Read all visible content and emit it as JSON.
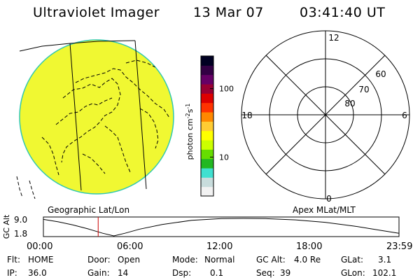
{
  "header": {
    "title": "Ultraviolet Imager",
    "date": "13 Mar 07",
    "time": "03:41:40 UT"
  },
  "colorbar": {
    "label": "photon cm-2s-1",
    "label_base": "photon cm",
    "label_exp1": "-2",
    "label_mid": "s",
    "label_exp2": "-1",
    "ticks": [
      {
        "value": 100,
        "label": "100"
      },
      {
        "value": 10,
        "label": "10"
      }
    ],
    "range": [
      2.7,
      300
    ],
    "scale": "log",
    "colors": [
      "#f2f2f2",
      "#c8dcdc",
      "#40e0d0",
      "#22b822",
      "#66dd00",
      "#ccff00",
      "#ffff00",
      "#ffcc33",
      "#ff8800",
      "#ff3300",
      "#dd0000",
      "#990033",
      "#660066",
      "#330044",
      "#000022"
    ]
  },
  "image_panel": {
    "fill_color": "#f0f832",
    "rim_color": "#30c8b0",
    "subtitle": "Geographic Lat/Lon"
  },
  "polar_panel": {
    "subtitle": "Apex MLat/MLT",
    "mlt_labels": {
      "top": "12",
      "bottom": "0",
      "left": "18",
      "right": "6"
    },
    "lat_rings": [
      {
        "lat": 60,
        "label": "60"
      },
      {
        "lat": 70,
        "label": "70"
      },
      {
        "lat": 80,
        "label": "80"
      }
    ]
  },
  "altitude_plot": {
    "ylabel": "GC Alt",
    "y_ticks": [
      "9.0",
      "1.8"
    ],
    "ylim": [
      1.8,
      9.0
    ],
    "x_ticks": [
      "00:00",
      "06:00",
      "12:00",
      "18:00",
      "23:59"
    ],
    "current_time": "03:41",
    "current_hour": 3.695,
    "marker_color": "#cc0000",
    "orbit_points": [
      [
        0.0,
        8.6
      ],
      [
        1.0,
        7.6
      ],
      [
        2.0,
        6.3
      ],
      [
        3.0,
        4.7
      ],
      [
        4.0,
        2.9
      ],
      [
        4.75,
        1.8
      ],
      [
        5.5,
        2.9
      ],
      [
        6.5,
        4.6
      ],
      [
        8.0,
        6.5
      ],
      [
        10.0,
        8.2
      ],
      [
        12.0,
        8.9
      ],
      [
        13.5,
        9.0
      ],
      [
        15.0,
        8.9
      ],
      [
        17.0,
        8.4
      ],
      [
        19.0,
        7.4
      ],
      [
        21.0,
        5.8
      ],
      [
        22.5,
        4.3
      ],
      [
        23.98,
        2.9
      ]
    ]
  },
  "status": {
    "flt": {
      "label": "Flt:",
      "value": "HOME"
    },
    "ip": {
      "label": "IP:",
      "value": "36.0"
    },
    "door": {
      "label": "Door:",
      "value": "Open"
    },
    "gain": {
      "label": "Gain:",
      "value": "14"
    },
    "mode": {
      "label": "Mode:",
      "value": "Normal"
    },
    "dsp": {
      "label": "Dsp:",
      "value": "0.1"
    },
    "gc_alt": {
      "label": "GC Alt:",
      "value": "4.0 Re"
    },
    "seq": {
      "label": "Seq:",
      "value": "39"
    },
    "glat": {
      "label": "GLat:",
      "value": "3.1"
    },
    "glon": {
      "label": "GLon:",
      "value": "102.1"
    }
  }
}
